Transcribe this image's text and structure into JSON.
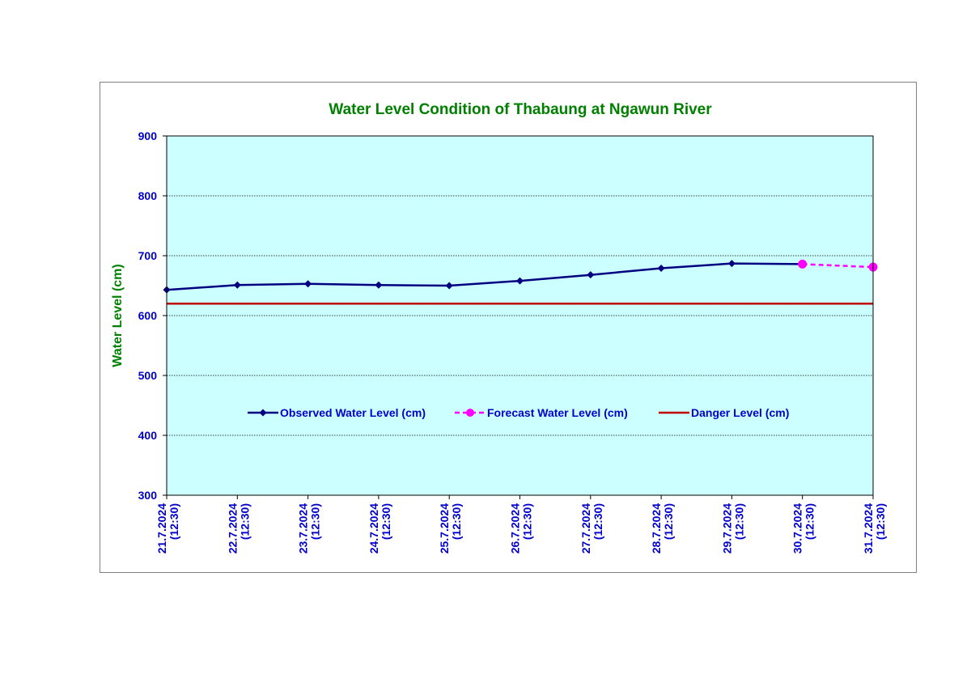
{
  "chart_data": {
    "type": "line",
    "title": "Water Level Condition  of Thabaung at Ngawun River",
    "xlabel": "",
    "ylabel": "Water Level (cm)",
    "ylim": [
      300,
      900
    ],
    "yticks": [
      300,
      400,
      500,
      600,
      700,
      800,
      900
    ],
    "categories": [
      [
        "21.7.2024",
        "(12:30)"
      ],
      [
        "22.7.2024",
        "(12:30)"
      ],
      [
        "23.7.2024",
        "(12:30)"
      ],
      [
        "24.7.2024",
        "(12:30)"
      ],
      [
        "25.7.2024",
        "(12:30)"
      ],
      [
        "26.7.2024",
        "(12:30)"
      ],
      [
        "27.7.2024",
        "(12:30)"
      ],
      [
        "28.7.2024",
        "(12:30)"
      ],
      [
        "29.7.2024",
        "(12:30)"
      ],
      [
        "30.7.2024",
        "(12:30)"
      ],
      [
        "31.7.2024",
        "(12:30)"
      ]
    ],
    "grid": "horizontal",
    "legend_position": "center",
    "series": [
      {
        "name": "Observed Water Level (cm)",
        "color": "#000080",
        "marker": "diamond",
        "style": "solid",
        "values": [
          643,
          651,
          653,
          651,
          650,
          658,
          668,
          679,
          687,
          686,
          null
        ]
      },
      {
        "name": "Forecast Water Level (cm)",
        "color": "#FF00FF",
        "marker": "circle",
        "style": "dashed",
        "values": [
          null,
          null,
          null,
          null,
          null,
          null,
          null,
          null,
          null,
          686,
          681
        ]
      },
      {
        "name": "Danger Level (cm)",
        "color": "#C00000",
        "marker": "none",
        "style": "solid",
        "values": [
          620,
          620,
          620,
          620,
          620,
          620,
          620,
          620,
          620,
          620,
          620
        ]
      }
    ],
    "colors": {
      "plot_background": "#CCFFFF",
      "title": "#008000",
      "ylabel": "#008000",
      "ticks": "#0000CC",
      "legend_text": "#0000CC"
    }
  }
}
